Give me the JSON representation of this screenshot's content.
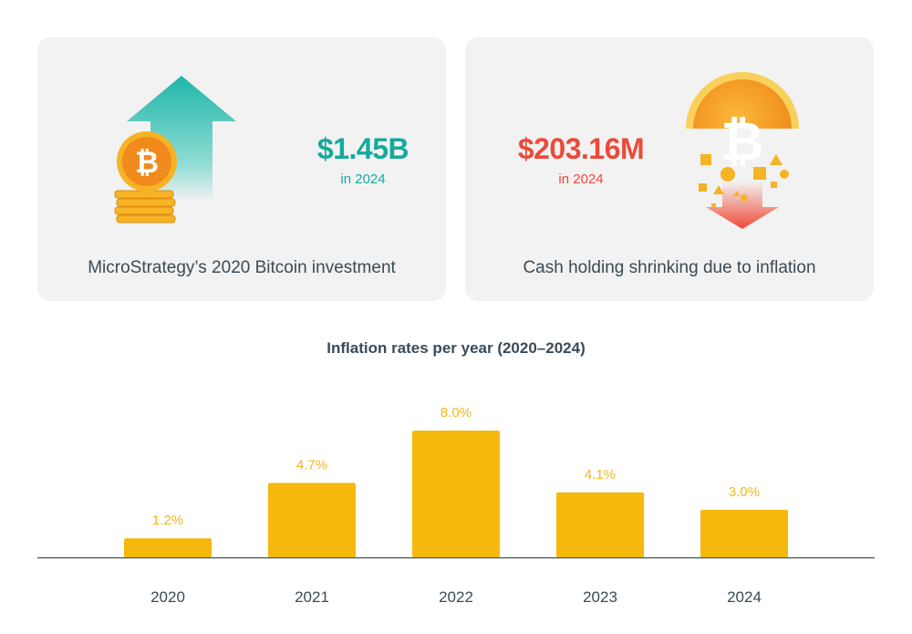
{
  "cards": [
    {
      "value": "$1.45B",
      "sub": "in 2024",
      "caption": "MicroStrategy’s 2020 Bitcoin investment",
      "accent": "#14aa9d",
      "icon": "bitcoin-up-arrow-icon"
    },
    {
      "value": "$203.16M",
      "sub": "in 2024",
      "caption": "Cash holding shrinking due to inflation",
      "accent": "#ec4a3a",
      "icon": "bitcoin-dissolving-down-arrow-icon"
    }
  ],
  "chart_data": {
    "type": "bar",
    "title": "Inflation rates per year (2020–2024)",
    "categories": [
      "2020",
      "2021",
      "2022",
      "2023",
      "2024"
    ],
    "values": [
      1.2,
      4.7,
      8.0,
      4.1,
      3.0
    ],
    "value_labels": [
      "1.2%",
      "4.7%",
      "8.0%",
      "4.1%",
      "3.0%"
    ],
    "xlabel": "",
    "ylabel": "",
    "ylim": [
      0,
      8.0
    ],
    "grid": false,
    "bar_color": "#f5b80c",
    "label_color": "#f0b81a"
  }
}
